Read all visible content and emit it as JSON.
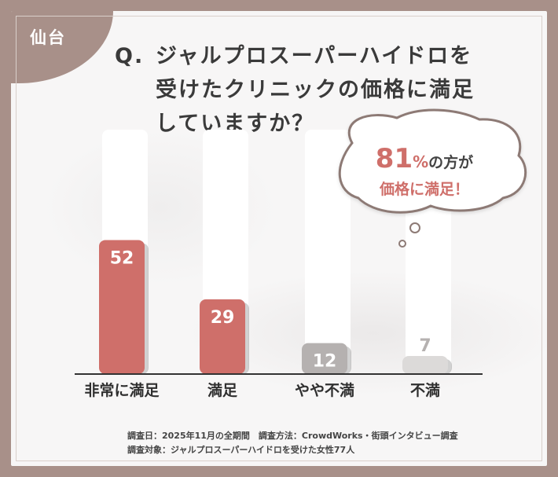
{
  "corner_label": "仙台",
  "question": {
    "prefix": "Q.",
    "lines": [
      "ジャルプロスーパーハイドロを",
      "受けたクリニックの価格に満足",
      "していますか？"
    ]
  },
  "callout": {
    "percent": "81",
    "percent_suffix": "%",
    "line1_rest": "の方が",
    "line2": "価格に満足！"
  },
  "chart_data": {
    "type": "bar",
    "categories": [
      "非常に満足",
      "満足",
      "やや不満",
      "不満"
    ],
    "values": [
      52,
      29,
      12,
      7
    ],
    "ylim": [
      0,
      100
    ],
    "colors": {
      "satisfied": "#cf6f6a",
      "dissatisfied": "#b5b1b0",
      "minor": "#dcdad9",
      "track": "#ffffff"
    }
  },
  "footnote": {
    "line1": "調査日：2025年11月の全期間　調査方法：CrowdWorks・街頭インタビュー調査",
    "line2": "調査対象：ジャルプロスーパーハイドロを受けた女性77人"
  }
}
